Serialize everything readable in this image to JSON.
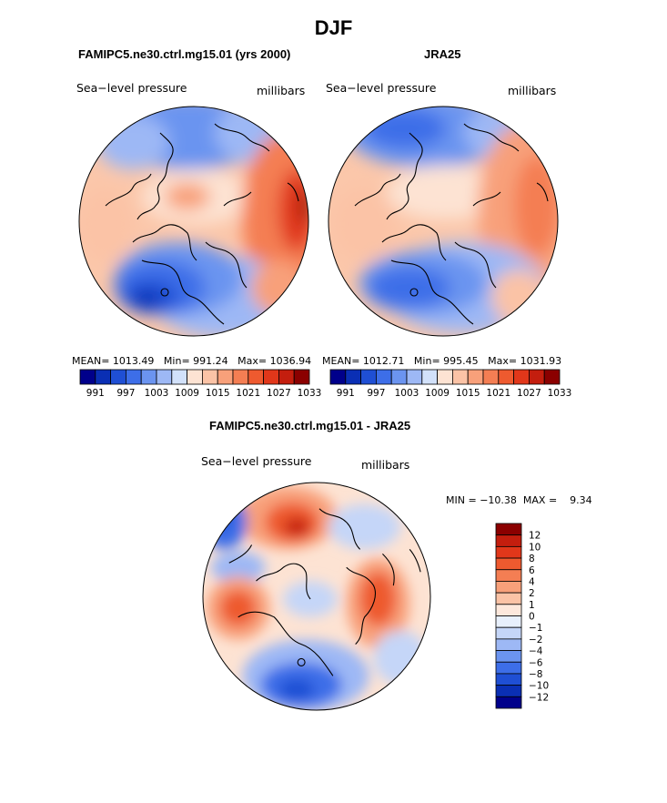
{
  "title": "DJF",
  "panel1": {
    "model": "FAMIPC5.ne30.ctrl.mg15.01 (yrs 2000)",
    "variable": "Sea−level pressure",
    "units": "millibars",
    "stats": {
      "mean_label": "MEAN=",
      "mean": "1013.49",
      "min_label": "Min=",
      "min": "991.24",
      "max_label": "Max=",
      "max": "1036.94"
    }
  },
  "panel2": {
    "model": "JRA25",
    "variable": "Sea−level pressure",
    "units": "millibars",
    "stats": {
      "mean_label": "MEAN=",
      "mean": "1012.71",
      "min_label": "Min=",
      "min": "995.45",
      "max_label": "Max=",
      "max": "1031.93"
    }
  },
  "panel3": {
    "model": "FAMIPC5.ne30.ctrl.mg15.01 - JRA25",
    "variable": "Sea−level pressure",
    "units": "millibars",
    "stats": {
      "min_label": "MIN =",
      "min": "−10.38",
      "max_label": "MAX =",
      "max": "9.34"
    }
  },
  "colorbar_abs": {
    "colors": [
      "#00008b",
      "#0a2fb4",
      "#1f4fd4",
      "#3d6ee8",
      "#6b94f0",
      "#9db8f5",
      "#d2e1fa",
      "#fde3d3",
      "#fbc3a6",
      "#f8a07a",
      "#f47e53",
      "#ee5a2f",
      "#e1371a",
      "#c41e0e",
      "#8b0000"
    ],
    "tick_labels": [
      "991",
      "997",
      "1003",
      "1009",
      "1015",
      "1021",
      "1027",
      "1033"
    ]
  },
  "colorbar_diff": {
    "colors": [
      "#00008b",
      "#0a2fb4",
      "#1f4fd4",
      "#3d6ee8",
      "#6b94f0",
      "#9db8f5",
      "#c5d6f8",
      "#e8f0fc",
      "#fde8dc",
      "#fbc3a6",
      "#f8a07a",
      "#f47e53",
      "#ee5a2f",
      "#e1371a",
      "#c41e0e",
      "#8b0000"
    ],
    "tick_labels": [
      "−12",
      "−10",
      "−8",
      "−6",
      "−4",
      "−2",
      "−1",
      "0",
      "1",
      "2",
      "4",
      "6",
      "8",
      "10",
      "12"
    ]
  }
}
